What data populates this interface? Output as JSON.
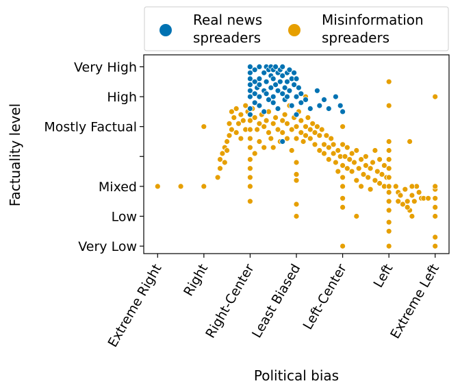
{
  "chart_data": {
    "type": "scatter",
    "xlabel": "Political bias",
    "ylabel": "Factuality level",
    "x_categories": [
      "Extreme Right",
      "Right",
      "Right-Center",
      "Least Biased",
      "Left-Center",
      "Left",
      "Extreme Left"
    ],
    "y_tick_labels": [
      "Very Low",
      "Low",
      "Mixed",
      "",
      "Mostly Factual",
      "High",
      "Very High"
    ],
    "xlim": [
      -0.3,
      6.3
    ],
    "ylim": [
      -0.25,
      6.4
    ],
    "grid": false,
    "legend": {
      "placement": "top",
      "ncol": 2
    },
    "series": [
      {
        "name": "Real news spreaders",
        "label_lines": [
          "Real news",
          "spreaders"
        ],
        "color": "#0072B2",
        "points": [
          [
            2.0,
            6.0
          ],
          [
            2.0,
            5.8
          ],
          [
            2.0,
            5.6
          ],
          [
            2.0,
            5.4
          ],
          [
            2.0,
            5.2
          ],
          [
            2.0,
            5.0
          ],
          [
            2.0,
            4.6
          ],
          [
            2.0,
            4.4
          ],
          [
            2.1,
            5.9
          ],
          [
            2.1,
            5.5
          ],
          [
            2.1,
            5.1
          ],
          [
            2.1,
            4.8
          ],
          [
            2.15,
            5.3
          ],
          [
            2.2,
            6.0
          ],
          [
            2.2,
            5.6
          ],
          [
            2.2,
            5.4
          ],
          [
            2.2,
            5.0
          ],
          [
            2.2,
            4.7
          ],
          [
            2.3,
            5.8
          ],
          [
            2.3,
            5.2
          ],
          [
            2.3,
            4.5
          ],
          [
            2.35,
            6.0
          ],
          [
            2.35,
            5.5
          ],
          [
            2.35,
            5.1
          ],
          [
            2.4,
            5.9
          ],
          [
            2.4,
            4.9
          ],
          [
            2.45,
            6.0
          ],
          [
            2.45,
            5.7
          ],
          [
            2.45,
            5.3
          ],
          [
            2.5,
            5.9
          ],
          [
            2.5,
            5.6
          ],
          [
            2.5,
            5.0
          ],
          [
            2.5,
            4.8
          ],
          [
            2.55,
            6.0
          ],
          [
            2.55,
            5.4
          ],
          [
            2.6,
            5.8
          ],
          [
            2.6,
            5.2
          ],
          [
            2.6,
            4.6
          ],
          [
            2.65,
            5.9
          ],
          [
            2.65,
            5.5
          ],
          [
            2.7,
            6.0
          ],
          [
            2.7,
            5.7
          ],
          [
            2.7,
            5.1
          ],
          [
            2.7,
            3.5
          ],
          [
            2.75,
            5.3
          ],
          [
            2.75,
            4.9
          ],
          [
            2.8,
            5.8
          ],
          [
            2.8,
            5.5
          ],
          [
            2.8,
            5.0
          ],
          [
            2.85,
            5.9
          ],
          [
            2.85,
            5.2
          ],
          [
            2.9,
            5.6
          ],
          [
            2.9,
            4.7
          ],
          [
            2.95,
            5.8
          ],
          [
            2.95,
            5.4
          ],
          [
            3.0,
            5.6
          ],
          [
            3.0,
            5.0
          ],
          [
            3.0,
            4.4
          ],
          [
            3.05,
            5.3
          ],
          [
            3.1,
            5.1
          ],
          [
            3.1,
            4.8
          ],
          [
            3.2,
            4.9
          ],
          [
            3.3,
            4.6
          ],
          [
            3.45,
            5.2
          ],
          [
            3.5,
            4.7
          ],
          [
            3.6,
            4.9
          ],
          [
            3.7,
            4.6
          ],
          [
            3.85,
            5.0
          ],
          [
            3.95,
            4.7
          ],
          [
            4.0,
            4.5
          ]
        ]
      },
      {
        "name": "Misinformation spreaders",
        "label_lines": [
          "Misinformation",
          "spreaders"
        ],
        "color": "#E69F00",
        "points": [
          [
            0.0,
            2.0
          ],
          [
            0.5,
            2.0
          ],
          [
            1.0,
            2.0
          ],
          [
            1.0,
            4.0
          ],
          [
            6.0,
            5.0
          ],
          [
            1.3,
            2.3
          ],
          [
            1.35,
            2.6
          ],
          [
            1.35,
            2.9
          ],
          [
            1.4,
            3.1
          ],
          [
            1.45,
            3.3
          ],
          [
            1.45,
            2.8
          ],
          [
            1.5,
            3.5
          ],
          [
            1.5,
            3.2
          ],
          [
            1.55,
            3.7
          ],
          [
            1.55,
            4.1
          ],
          [
            1.6,
            3.9
          ],
          [
            1.6,
            4.5
          ],
          [
            1.65,
            4.3
          ],
          [
            1.7,
            3.8
          ],
          [
            1.7,
            4.6
          ],
          [
            1.75,
            4.1
          ],
          [
            1.8,
            3.6
          ],
          [
            1.8,
            4.4
          ],
          [
            1.85,
            4.2
          ],
          [
            1.9,
            3.9
          ],
          [
            1.9,
            4.7
          ],
          [
            1.95,
            4.5
          ],
          [
            2.0,
            2.0
          ],
          [
            2.0,
            1.5
          ],
          [
            2.0,
            2.3
          ],
          [
            2.0,
            2.6
          ],
          [
            2.0,
            2.9
          ],
          [
            2.0,
            3.3
          ],
          [
            2.0,
            3.6
          ],
          [
            2.0,
            3.9
          ],
          [
            2.0,
            4.2
          ],
          [
            2.05,
            4.6
          ],
          [
            2.1,
            3.1
          ],
          [
            2.1,
            4.3
          ],
          [
            2.15,
            3.9
          ],
          [
            2.2,
            4.1
          ],
          [
            2.2,
            3.5
          ],
          [
            2.25,
            4.4
          ],
          [
            2.3,
            4.0
          ],
          [
            2.3,
            3.3
          ],
          [
            2.35,
            4.2
          ],
          [
            2.4,
            3.8
          ],
          [
            2.4,
            4.5
          ],
          [
            2.45,
            3.6
          ],
          [
            2.5,
            4.1
          ],
          [
            2.5,
            3.3
          ],
          [
            2.55,
            4.3
          ],
          [
            2.6,
            3.9
          ],
          [
            2.6,
            4.6
          ],
          [
            2.65,
            3.5
          ],
          [
            2.7,
            4.2
          ],
          [
            2.7,
            3.8
          ],
          [
            2.75,
            4.4
          ],
          [
            2.8,
            3.6
          ],
          [
            2.8,
            4.1
          ],
          [
            2.85,
            4.7
          ],
          [
            2.9,
            3.9
          ],
          [
            2.9,
            3.2
          ],
          [
            2.95,
            4.3
          ],
          [
            3.0,
            4.0
          ],
          [
            3.0,
            3.6
          ],
          [
            3.0,
            2.8
          ],
          [
            3.0,
            2.4
          ],
          [
            3.0,
            2.2
          ],
          [
            3.0,
            1.4
          ],
          [
            3.0,
            1.0
          ],
          [
            3.05,
            4.5
          ],
          [
            3.1,
            3.8
          ],
          [
            3.1,
            4.2
          ],
          [
            3.15,
            3.5
          ],
          [
            3.2,
            4.0
          ],
          [
            3.2,
            3.7
          ],
          [
            3.25,
            4.3
          ],
          [
            3.3,
            3.6
          ],
          [
            3.3,
            3.9
          ],
          [
            3.35,
            4.1
          ],
          [
            3.4,
            3.4
          ],
          [
            3.4,
            3.8
          ],
          [
            3.45,
            4.0
          ],
          [
            3.5,
            3.2
          ],
          [
            3.5,
            3.7
          ],
          [
            3.55,
            3.9
          ],
          [
            3.6,
            3.4
          ],
          [
            3.6,
            3.1
          ],
          [
            3.65,
            3.7
          ],
          [
            3.7,
            3.3
          ],
          [
            3.7,
            2.9
          ],
          [
            3.75,
            3.6
          ],
          [
            3.8,
            3.1
          ],
          [
            3.8,
            3.4
          ],
          [
            3.85,
            2.8
          ],
          [
            3.9,
            3.2
          ],
          [
            3.9,
            2.5
          ],
          [
            3.95,
            3.0
          ],
          [
            4.0,
            3.4
          ],
          [
            4.0,
            2.7
          ],
          [
            4.0,
            2.3
          ],
          [
            4.0,
            2.0
          ],
          [
            4.0,
            1.6
          ],
          [
            4.0,
            1.3
          ],
          [
            4.0,
            0.0
          ],
          [
            4.0,
            4.0
          ],
          [
            4.05,
            3.0
          ],
          [
            4.1,
            2.6
          ],
          [
            4.1,
            3.3
          ],
          [
            4.15,
            2.9
          ],
          [
            4.2,
            2.5
          ],
          [
            4.2,
            3.1
          ],
          [
            4.25,
            2.8
          ],
          [
            4.3,
            2.2
          ],
          [
            4.3,
            3.2
          ],
          [
            4.35,
            2.6
          ],
          [
            4.4,
            2.9
          ],
          [
            4.4,
            2.0
          ],
          [
            4.45,
            2.4
          ],
          [
            4.5,
            2.7
          ],
          [
            4.5,
            3.0
          ],
          [
            4.55,
            2.3
          ],
          [
            4.6,
            2.6
          ],
          [
            4.6,
            1.9
          ],
          [
            4.65,
            2.8
          ],
          [
            4.7,
            2.2
          ],
          [
            4.7,
            3.2
          ],
          [
            4.75,
            2.5
          ],
          [
            4.8,
            2.1
          ],
          [
            4.8,
            2.9
          ],
          [
            4.85,
            2.4
          ],
          [
            4.9,
            2.0
          ],
          [
            4.9,
            2.7
          ],
          [
            4.95,
            2.3
          ],
          [
            3.2,
            5.0
          ],
          [
            3.6,
            4.9
          ],
          [
            5.0,
            5.5
          ],
          [
            4.3,
            1.0
          ],
          [
            5.0,
            1.5
          ],
          [
            5.0,
            0.0
          ],
          [
            5.0,
            0.5
          ],
          [
            5.0,
            0.8
          ],
          [
            5.0,
            1.2
          ],
          [
            5.0,
            1.8
          ],
          [
            5.0,
            2.0
          ],
          [
            5.0,
            2.3
          ],
          [
            5.0,
            2.6
          ],
          [
            5.0,
            2.9
          ],
          [
            5.0,
            3.2
          ],
          [
            5.0,
            3.5
          ],
          [
            5.0,
            4.7
          ],
          [
            5.15,
            2.0
          ],
          [
            5.2,
            1.8
          ],
          [
            5.2,
            1.5
          ],
          [
            5.25,
            1.7
          ],
          [
            5.3,
            1.4
          ],
          [
            5.35,
            1.9
          ],
          [
            5.4,
            1.5
          ],
          [
            5.45,
            1.2
          ],
          [
            5.5,
            1.7
          ],
          [
            5.5,
            1.0
          ],
          [
            5.55,
            1.5
          ],
          [
            5.6,
            2.0
          ],
          [
            5.65,
            1.8
          ],
          [
            5.7,
            1.6
          ],
          [
            5.45,
            3.5
          ],
          [
            5.75,
            1.6
          ],
          [
            5.85,
            1.6
          ],
          [
            5.5,
            2.0
          ],
          [
            5.4,
            1.3
          ],
          [
            6.0,
            0.0
          ],
          [
            6.0,
            0.3
          ],
          [
            6.0,
            1.0
          ],
          [
            6.0,
            1.3
          ],
          [
            6.0,
            1.6
          ],
          [
            6.0,
            1.9
          ],
          [
            6.0,
            2.0
          ]
        ]
      }
    ]
  }
}
